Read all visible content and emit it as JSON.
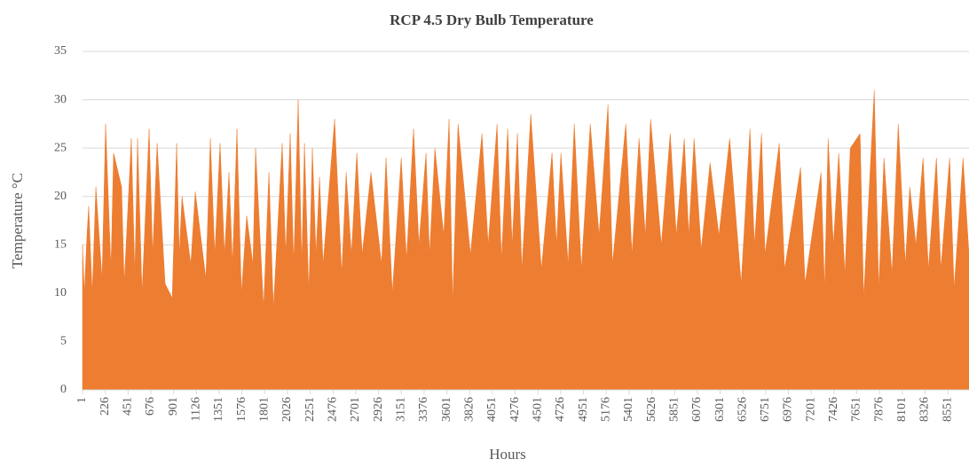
{
  "chart_data": {
    "type": "area",
    "title": "RCP 4.5 Dry Bulb Temperature",
    "x_label": "Hours",
    "y_label": "Temperature °C",
    "color": "#ed7d31",
    "grid": true,
    "xlim": [
      1,
      8760
    ],
    "ylim": [
      0,
      35
    ],
    "yticks": [
      0,
      5,
      10,
      15,
      20,
      25,
      30,
      35
    ],
    "xticks": [
      1,
      226,
      451,
      676,
      901,
      1126,
      1351,
      1576,
      1801,
      2026,
      2251,
      2476,
      2701,
      2926,
      3151,
      3376,
      3601,
      3826,
      4051,
      4276,
      4501,
      4726,
      4951,
      5176,
      5401,
      5626,
      5851,
      6076,
      6301,
      6526,
      6751,
      6976,
      7201,
      7426,
      7651,
      7876,
      8101,
      8326,
      8551
    ],
    "x": [
      1,
      19,
      45,
      62,
      97,
      133,
      194,
      229,
      282,
      308,
      387,
      413,
      483,
      518,
      545,
      589,
      659,
      694,
      738,
      817,
      887,
      931,
      957,
      984,
      1071,
      1115,
      1220,
      1264,
      1308,
      1360,
      1404,
      1448,
      1483,
      1527,
      1571,
      1623,
      1685,
      1711,
      1790,
      1843,
      1887,
      1974,
      2009,
      2053,
      2088,
      2132,
      2167,
      2194,
      2237,
      2272,
      2308,
      2343,
      2378,
      2492,
      2562,
      2606,
      2658,
      2711,
      2764,
      2851,
      2956,
      3000,
      3062,
      3150,
      3202,
      3272,
      3325,
      3395,
      3430,
      3483,
      3570,
      3623,
      3658,
      3711,
      3834,
      3948,
      4009,
      4097,
      4140,
      4202,
      4246,
      4298,
      4342,
      4430,
      4535,
      4640,
      4684,
      4728,
      4799,
      4860,
      4930,
      5018,
      5105,
      5193,
      5237,
      5369,
      5430,
      5500,
      5562,
      5614,
      5720,
      5808,
      5868,
      5947,
      5991,
      6044,
      6114,
      6202,
      6289,
      6395,
      6509,
      6596,
      6640,
      6710,
      6745,
      6885,
      6938,
      7096,
      7140,
      7298,
      7333,
      7368,
      7420,
      7473,
      7534,
      7587,
      7684,
      7719,
      7824,
      7868,
      7920,
      7999,
      8061,
      8131,
      8175,
      8236,
      8306,
      8359,
      8438,
      8482,
      8569,
      8613,
      8701,
      8760
    ],
    "values": [
      15,
      10,
      16,
      19,
      10,
      21,
      11.5,
      27.5,
      12.5,
      24.5,
      21,
      11,
      26,
      12,
      26,
      10,
      27,
      14,
      25.5,
      11,
      9.5,
      25.5,
      14,
      20,
      13,
      20.5,
      11.5,
      26,
      14,
      25.5,
      14,
      22.5,
      13,
      27,
      10,
      18,
      13,
      25,
      8.5,
      22.5,
      8.5,
      25.5,
      14,
      26.5,
      13,
      30,
      13,
      25.5,
      10,
      25,
      14,
      22,
      13,
      28,
      12,
      22.5,
      14,
      24.5,
      14,
      22.5,
      13,
      24,
      10,
      24,
      13.5,
      27,
      15,
      24.5,
      14,
      25,
      16,
      28,
      9,
      27.5,
      14,
      26.5,
      15,
      27.5,
      13.5,
      27,
      15,
      26.5,
      12.5,
      28.5,
      12.5,
      24.5,
      15,
      24.5,
      13,
      27.5,
      12.5,
      27.5,
      16,
      29.5,
      13,
      27.5,
      14,
      26,
      16,
      28,
      15,
      26.5,
      16,
      26,
      16,
      26,
      14.5,
      23.5,
      16,
      26,
      11,
      27,
      15,
      26.5,
      14,
      25.5,
      12.5,
      23,
      11,
      22.5,
      10.5,
      26,
      15,
      24.5,
      12,
      25,
      26.5,
      9.5,
      31,
      10.5,
      24,
      12,
      27.5,
      13,
      21,
      15,
      24,
      12.5,
      24,
      12.5,
      24,
      10.5,
      24,
      14
    ]
  }
}
